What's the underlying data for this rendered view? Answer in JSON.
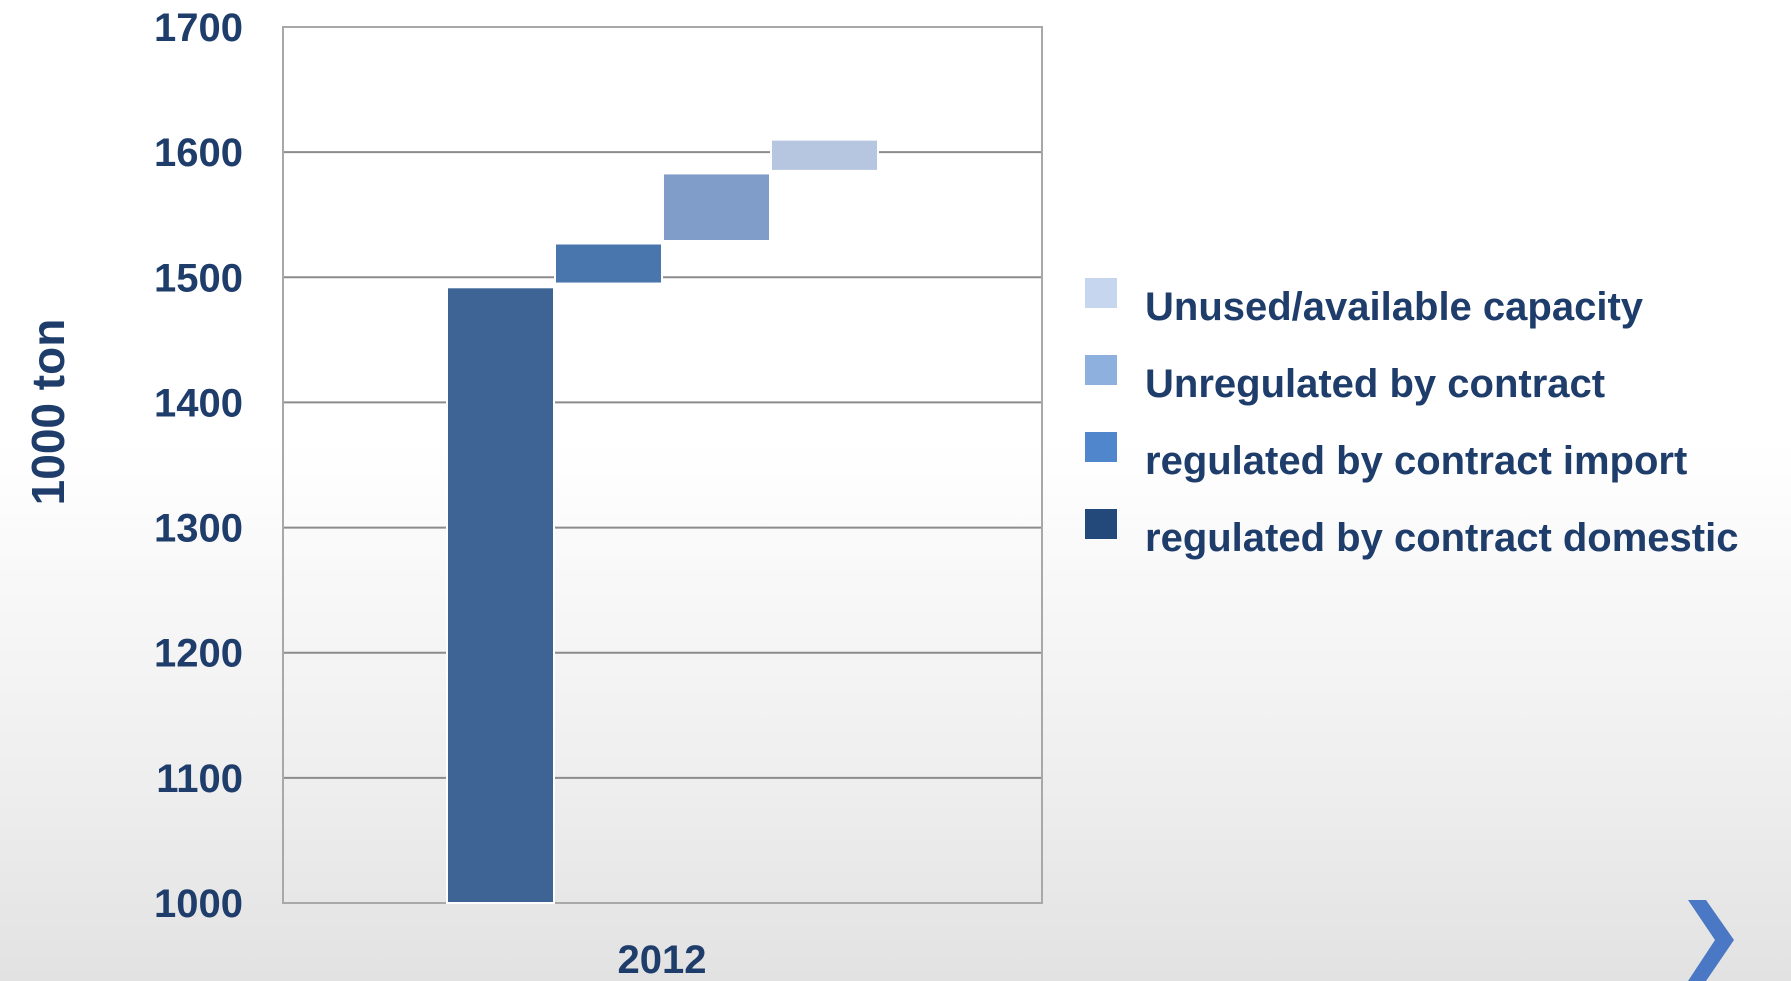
{
  "chart_data": {
    "type": "bar",
    "subtype": "waterfall",
    "categories": [
      "2012"
    ],
    "ylabel": "1000 ton",
    "xlabel": "",
    "ylim": [
      1000,
      1700
    ],
    "yticks": [
      1000,
      1100,
      1200,
      1300,
      1400,
      1500,
      1600,
      1700
    ],
    "grid": true,
    "legend_position": "right",
    "series": [
      {
        "name": "regulated by contract domestic",
        "start": 1000,
        "end": 1492,
        "color": "#3d6494"
      },
      {
        "name": "regulated by contract import",
        "start": 1495,
        "end": 1527,
        "color": "#4a76ae"
      },
      {
        "name": "Unregulated by contract",
        "start": 1529,
        "end": 1583,
        "color": "#7f9dc8"
      },
      {
        "name": "Unused/available capacity",
        "start": 1585,
        "end": 1610,
        "color": "#b6c6e0"
      }
    ],
    "legend": [
      {
        "label": "Unused/available capacity",
        "color": "#c6d6ee"
      },
      {
        "label": "Unregulated by contract",
        "color": "#8eb0de"
      },
      {
        "label": "regulated by contract import",
        "color": "#4f86cc"
      },
      {
        "label": "regulated by contract domestic",
        "color": "#22497a"
      }
    ]
  },
  "nav": {
    "next_icon": "chevron-right-icon",
    "next_color": "#4a78c4"
  }
}
